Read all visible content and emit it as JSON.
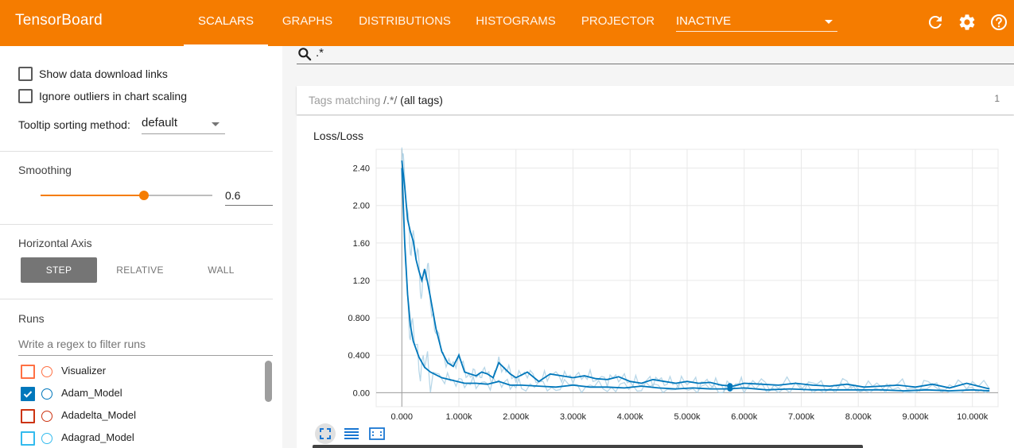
{
  "app": {
    "title": "TensorBoard"
  },
  "nav": {
    "tabs": [
      {
        "label": "SCALARS",
        "active": true
      },
      {
        "label": "GRAPHS"
      },
      {
        "label": "DISTRIBUTIONS"
      },
      {
        "label": "HISTOGRAMS"
      },
      {
        "label": "PROJECTOR"
      }
    ],
    "plugin_select": "INACTIVE"
  },
  "header_icons": [
    "refresh-icon",
    "settings-icon",
    "help-icon"
  ],
  "sidebar": {
    "show_download_links": {
      "label": "Show data download links",
      "checked": false
    },
    "ignore_outliers": {
      "label": "Ignore outliers in chart scaling",
      "checked": false
    },
    "tooltip_sorting": {
      "label": "Tooltip sorting method:",
      "value": "default"
    },
    "smoothing": {
      "title": "Smoothing",
      "value": 0.6,
      "display": "0.6"
    },
    "horizontal_axis": {
      "title": "Horizontal Axis",
      "options": [
        "STEP",
        "RELATIVE",
        "WALL"
      ],
      "selected": "STEP"
    },
    "runs": {
      "title": "Runs",
      "filter_placeholder": "Write a regex to filter runs",
      "items": [
        {
          "name": "Visualizer",
          "checked": false,
          "color": "#ff7043"
        },
        {
          "name": "Adam_Model",
          "checked": true,
          "color": "#0077bb"
        },
        {
          "name": "Adadelta_Model",
          "checked": false,
          "color": "#cc3311"
        },
        {
          "name": "Adagrad_Model",
          "checked": false,
          "color": "#33bbee"
        }
      ]
    }
  },
  "main": {
    "search_value": ".*",
    "tag_group": {
      "prefix": "Tags matching ",
      "pattern": "/.*/",
      "suffix": " (all tags)",
      "count": "1"
    }
  },
  "colors": {
    "accent": "#f57c00",
    "series": "#0077bb",
    "series_raw": "#a6cde2"
  },
  "chart_data": {
    "type": "line",
    "title": "Loss/Loss",
    "xlabel": "",
    "ylabel": "",
    "xlim": [
      -450,
      10450
    ],
    "ylim": [
      -0.15,
      2.6
    ],
    "x_ticks": [
      0,
      1000,
      2000,
      3000,
      4000,
      5000,
      6000,
      7000,
      8000,
      9000,
      10000
    ],
    "x_tick_labels": [
      "0.000",
      "1.000k",
      "2.000k",
      "3.000k",
      "4.000k",
      "5.000k",
      "6.000k",
      "7.000k",
      "8.000k",
      "9.000k",
      "10.000k"
    ],
    "y_ticks": [
      0,
      0.4,
      0.8,
      1.2,
      1.6,
      2.0,
      2.4
    ],
    "y_tick_labels": [
      "0.00",
      "0.400",
      "0.800",
      "1.20",
      "1.60",
      "2.00",
      "2.40"
    ],
    "grid": true,
    "series": [
      {
        "x": [
          0,
          50,
          100,
          150,
          200,
          250,
          300,
          350,
          400,
          450,
          500,
          600,
          700,
          800,
          900,
          1000,
          1100,
          1200,
          1300,
          1400,
          1500,
          1600,
          1700,
          1800,
          1900,
          2000,
          2200,
          2400,
          2600,
          2800,
          3000,
          3200,
          3400,
          3600,
          3800,
          4000,
          4200,
          4400,
          4600,
          4800,
          5000,
          5200,
          5400,
          5600,
          5800,
          6000,
          6300,
          6600,
          6900,
          7200,
          7500,
          7800,
          8100,
          8400,
          8700,
          9000,
          9300,
          9600,
          9900,
          10300
        ],
        "values": [
          2.48,
          2.2,
          1.85,
          1.72,
          1.62,
          1.42,
          1.3,
          1.2,
          1.32,
          1.18,
          1.02,
          0.68,
          0.44,
          0.32,
          0.28,
          0.4,
          0.22,
          0.2,
          0.18,
          0.22,
          0.2,
          0.16,
          0.32,
          0.26,
          0.2,
          0.16,
          0.22,
          0.12,
          0.2,
          0.18,
          0.16,
          0.18,
          0.15,
          0.14,
          0.17,
          0.12,
          0.1,
          0.14,
          0.12,
          0.1,
          0.12,
          0.1,
          0.11,
          0.08,
          0.07,
          0.1,
          0.09,
          0.08,
          0.1,
          0.08,
          0.07,
          0.09,
          0.06,
          0.07,
          0.08,
          0.06,
          0.09,
          0.05,
          0.1,
          0.04
        ]
      },
      {
        "x": [
          0,
          50,
          100,
          150,
          200,
          300,
          400,
          500,
          700,
          900,
          1100,
          1300,
          1500,
          1700,
          1900,
          2100,
          2400,
          2700,
          3000,
          3300,
          3600,
          3900,
          4200,
          4500,
          4800,
          5100,
          5400,
          5700,
          6000,
          6400,
          6800,
          7200,
          7600,
          8000,
          8400,
          8800,
          9200,
          9600,
          10000,
          10300
        ],
        "values": [
          2.4,
          1.6,
          1.05,
          0.72,
          0.55,
          0.38,
          0.27,
          0.22,
          0.16,
          0.13,
          0.1,
          0.1,
          0.09,
          0.12,
          0.08,
          0.08,
          0.07,
          0.06,
          0.08,
          0.06,
          0.06,
          0.05,
          0.07,
          0.05,
          0.04,
          0.05,
          0.04,
          0.04,
          0.05,
          0.03,
          0.04,
          0.03,
          0.03,
          0.03,
          0.03,
          0.02,
          0.03,
          0.02,
          0.03,
          0.02
        ]
      }
    ],
    "marker_x": 5750
  }
}
